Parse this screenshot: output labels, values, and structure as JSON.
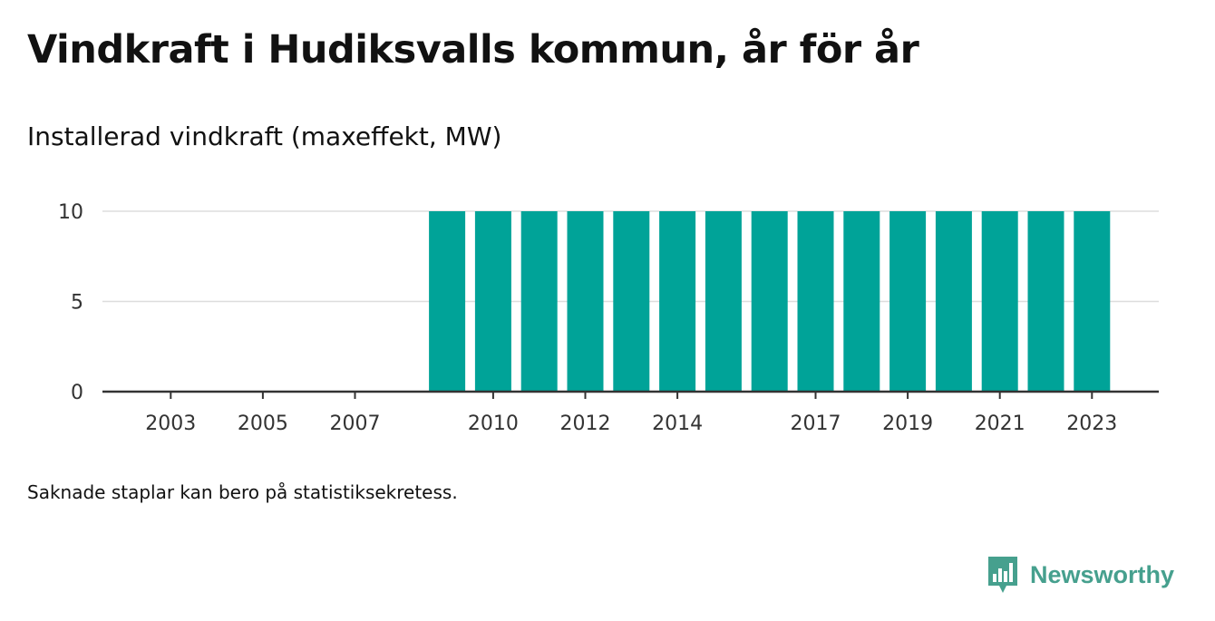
{
  "title": "Vindkraft i Hudiksvalls kommun, år för år",
  "note": "Saknade staplar kan bero på statistiksekretess.",
  "brand": {
    "name": "Newsworthy",
    "logo_icon": "bar-chart-bubble-icon",
    "color": "#46a08e"
  },
  "colors": {
    "bar": "#00a398",
    "grid": "#dddddd",
    "axis": "#333333"
  },
  "chart_data": {
    "type": "bar",
    "title": "Installerad vindkraft (maxeffekt, MW)",
    "xlabel": "",
    "ylabel": "",
    "categories": [
      "2002",
      "2003",
      "2004",
      "2005",
      "2006",
      "2007",
      "2008",
      "2009",
      "2010",
      "2011",
      "2012",
      "2013",
      "2014",
      "2015",
      "2016",
      "2017",
      "2018",
      "2019",
      "2020",
      "2021",
      "2022",
      "2023"
    ],
    "values": [
      null,
      null,
      null,
      null,
      null,
      null,
      null,
      10,
      10,
      10,
      10,
      10,
      10,
      10,
      10,
      10,
      10,
      10,
      10,
      10,
      10,
      10
    ],
    "x_tick_labels": [
      "2003",
      "2005",
      "2007",
      "2010",
      "2012",
      "2014",
      "2017",
      "2019",
      "2021",
      "2023"
    ],
    "y_ticks": [
      0,
      5,
      10
    ],
    "ylim": [
      0,
      10
    ],
    "grid": true,
    "legend": "none"
  }
}
